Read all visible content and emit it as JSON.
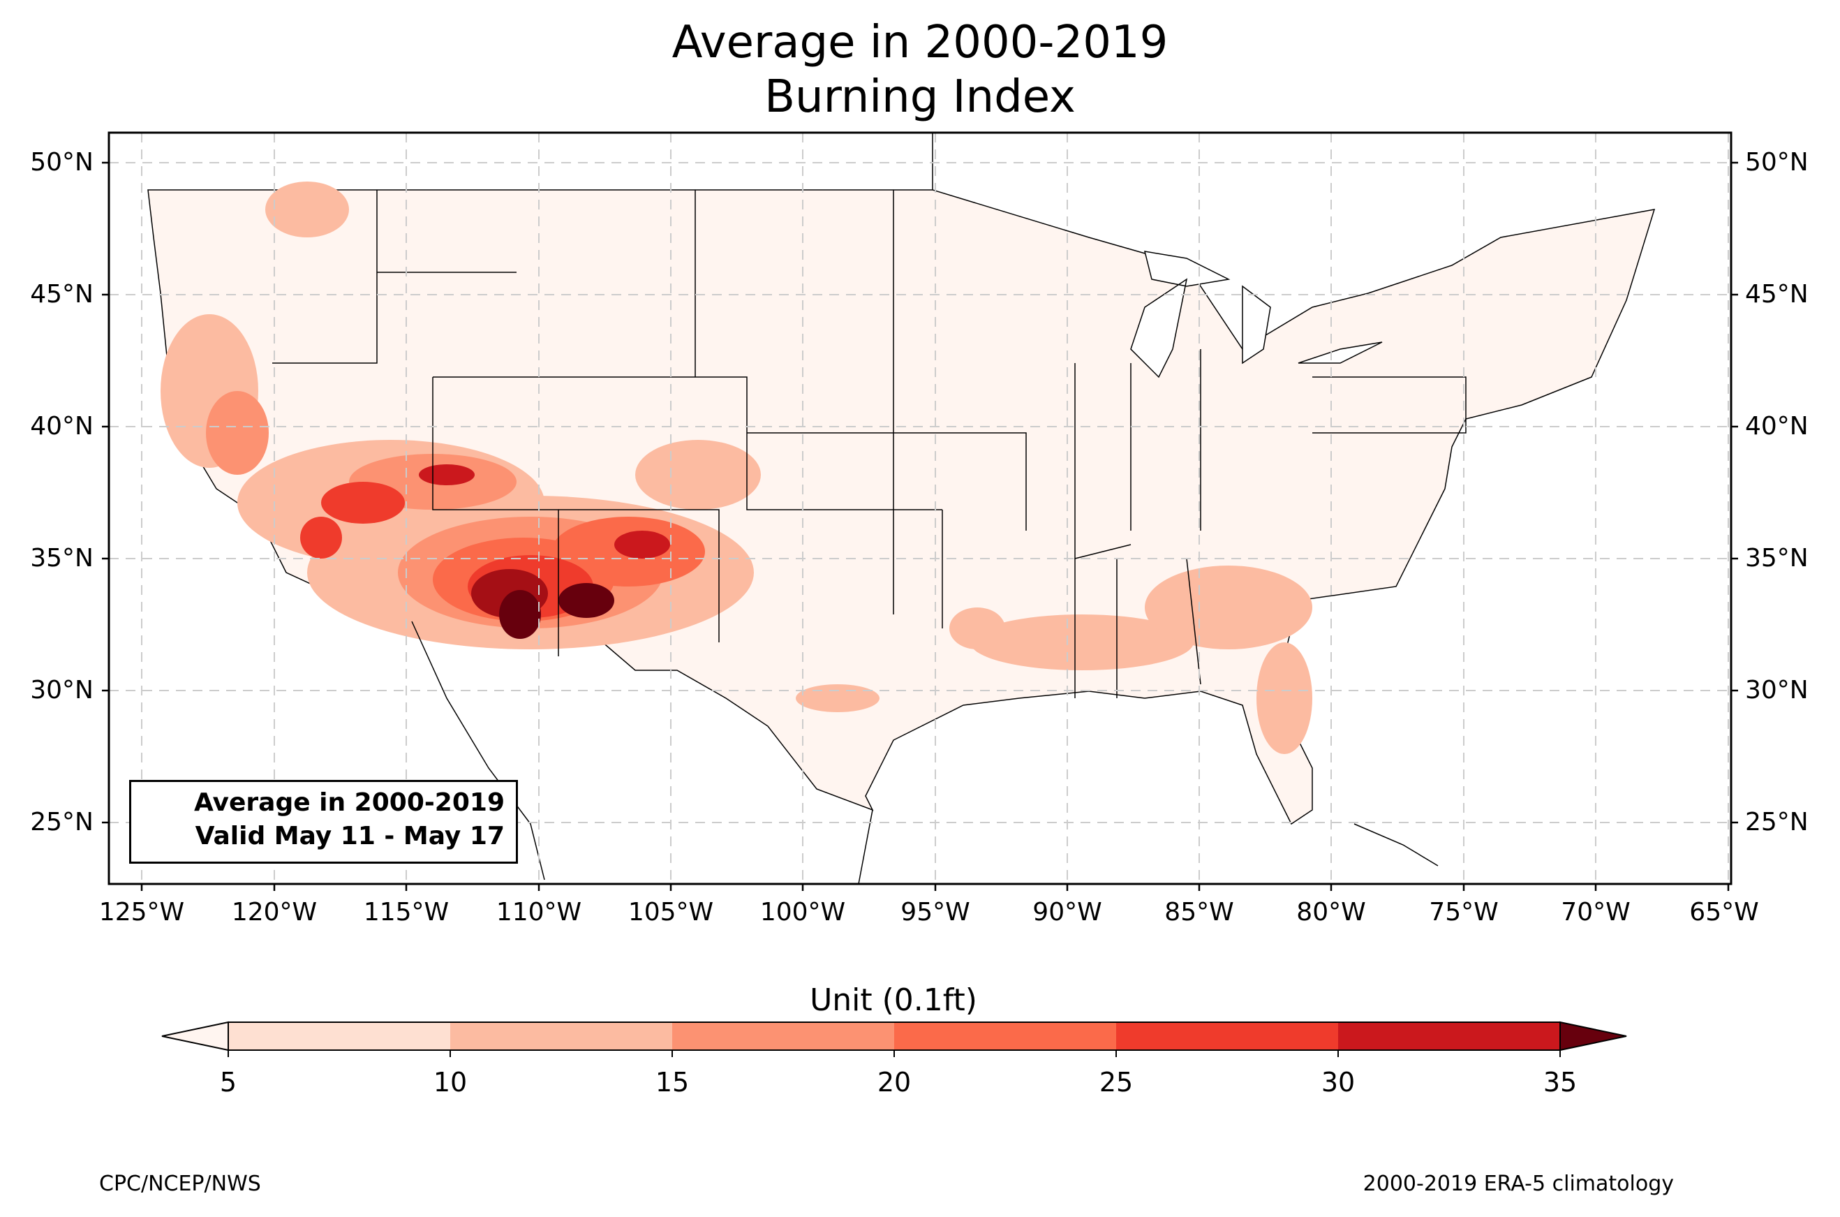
{
  "title": {
    "line1": "Average in 2000-2019",
    "line2": "Burning Index"
  },
  "map": {
    "lat_ticks": [
      "50°N",
      "45°N",
      "40°N",
      "35°N",
      "30°N",
      "25°N"
    ],
    "lon_ticks": [
      "125°W",
      "120°W",
      "115°W",
      "110°W",
      "105°W",
      "100°W",
      "95°W",
      "90°W",
      "85°W",
      "80°W",
      "75°W",
      "70°W",
      "65°W"
    ],
    "info_box": {
      "line1": "Average in 2000-2019",
      "line2": "Valid May 11 - May 17"
    },
    "colors": {
      "background": "#fff5f0",
      "border": "#000000",
      "gridline": "#cccccc"
    }
  },
  "colorbar": {
    "title": "Unit (0.1ft)",
    "ticks": [
      "5",
      "10",
      "15",
      "20",
      "25",
      "30",
      "35"
    ],
    "colors": [
      "#fee0d2",
      "#fcbba1",
      "#fc9272",
      "#fb6a4a",
      "#ef3b2c",
      "#cb181d",
      "#a50f15",
      "#67000d"
    ],
    "under_color": "#fff5f0",
    "over_color": "#67000d"
  },
  "footer": {
    "left": "CPC/NCEP/NWS",
    "right": "2000-2019 ERA-5 climatology"
  }
}
